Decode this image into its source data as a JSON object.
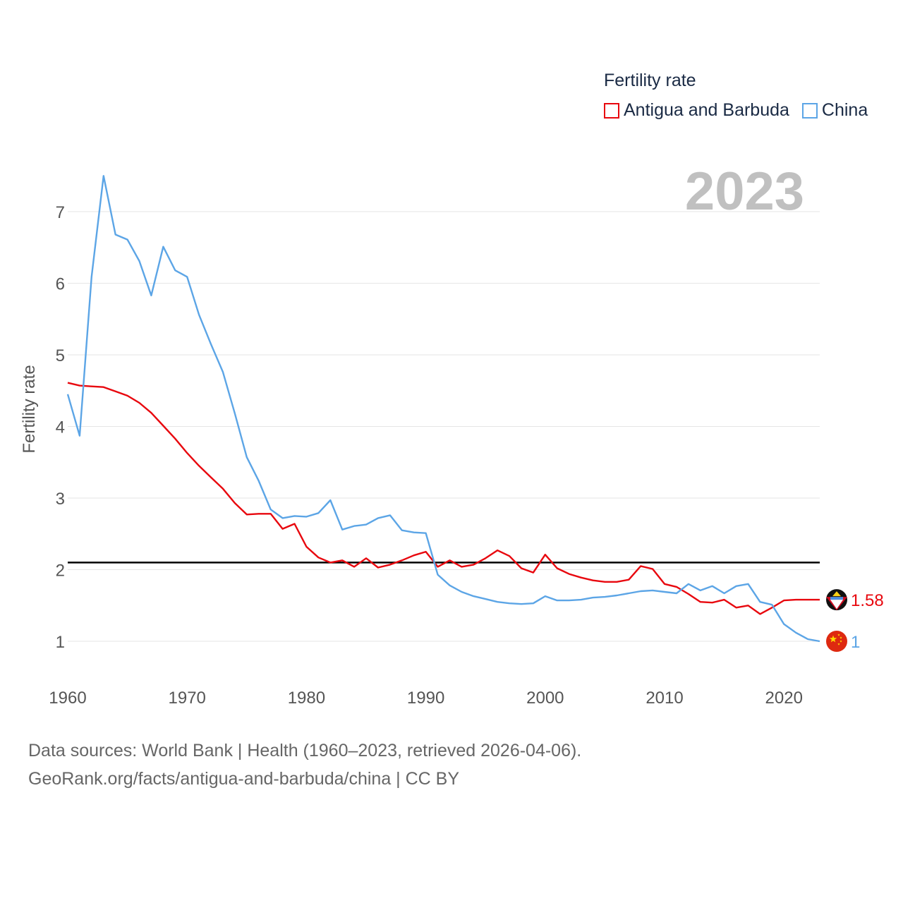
{
  "chart_data": {
    "type": "line",
    "title": "Fertility rate",
    "highlight_year": "2023",
    "ylabel": "Fertility rate",
    "xlabel": "",
    "xlim": [
      1960,
      2023
    ],
    "ylim": [
      0.5,
      7.5
    ],
    "x_ticks": [
      1960,
      1970,
      1980,
      1990,
      2000,
      2010,
      2020
    ],
    "y_ticks": [
      1,
      2,
      3,
      4,
      5,
      6,
      7
    ],
    "reference_line": {
      "value": 2.1,
      "color": "#000000"
    },
    "x": [
      1960,
      1961,
      1962,
      1963,
      1964,
      1965,
      1966,
      1967,
      1968,
      1969,
      1970,
      1971,
      1972,
      1973,
      1974,
      1975,
      1976,
      1977,
      1978,
      1979,
      1980,
      1981,
      1982,
      1983,
      1984,
      1985,
      1986,
      1987,
      1988,
      1989,
      1990,
      1991,
      1992,
      1993,
      1994,
      1995,
      1996,
      1997,
      1998,
      1999,
      2000,
      2001,
      2002,
      2003,
      2004,
      2005,
      2006,
      2007,
      2008,
      2009,
      2010,
      2011,
      2012,
      2013,
      2014,
      2015,
      2016,
      2017,
      2018,
      2019,
      2020,
      2021,
      2022,
      2023
    ],
    "series": [
      {
        "name": "Antigua and Barbuda",
        "color": "#e8070e",
        "end_label": "1.58",
        "values": [
          4.61,
          4.57,
          4.56,
          4.55,
          4.49,
          4.43,
          4.33,
          4.19,
          4.01,
          3.83,
          3.63,
          3.45,
          3.29,
          3.13,
          2.93,
          2.77,
          2.78,
          2.78,
          2.57,
          2.64,
          2.32,
          2.17,
          2.1,
          2.13,
          2.04,
          2.16,
          2.03,
          2.07,
          2.13,
          2.2,
          2.25,
          2.04,
          2.13,
          2.04,
          2.07,
          2.16,
          2.27,
          2.19,
          2.02,
          1.96,
          2.21,
          2.02,
          1.94,
          1.89,
          1.85,
          1.83,
          1.83,
          1.86,
          2.05,
          2.01,
          1.8,
          1.76,
          1.66,
          1.55,
          1.54,
          1.58,
          1.47,
          1.5,
          1.38,
          1.47,
          1.57,
          1.58,
          1.58,
          1.58
        ]
      },
      {
        "name": "China",
        "color": "#5ca5e6",
        "end_label": "1",
        "values": [
          4.45,
          3.87,
          6.09,
          7.5,
          6.68,
          6.61,
          6.31,
          5.83,
          6.51,
          6.18,
          6.09,
          5.56,
          5.15,
          4.76,
          4.18,
          3.57,
          3.24,
          2.84,
          2.72,
          2.75,
          2.74,
          2.79,
          2.97,
          2.56,
          2.61,
          2.63,
          2.72,
          2.76,
          2.55,
          2.52,
          2.51,
          1.93,
          1.78,
          1.69,
          1.63,
          1.59,
          1.55,
          1.53,
          1.52,
          1.53,
          1.63,
          1.57,
          1.57,
          1.58,
          1.61,
          1.62,
          1.64,
          1.67,
          1.7,
          1.71,
          1.69,
          1.67,
          1.8,
          1.71,
          1.77,
          1.67,
          1.77,
          1.8,
          1.55,
          1.51,
          1.24,
          1.12,
          1.03,
          1.0
        ]
      }
    ]
  },
  "source": {
    "line1": "Data sources: World Bank | Health (1960–2023, retrieved 2026-04-06).",
    "line2": "GeoRank.org/facts/antigua-and-barbuda/china | CC BY"
  }
}
